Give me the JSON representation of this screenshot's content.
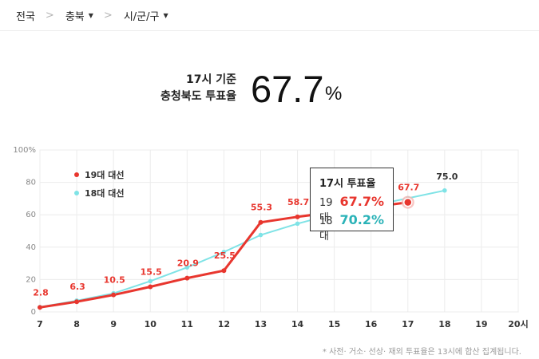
{
  "breadcrumb": {
    "items": [
      {
        "label": "전국",
        "has_caret": false
      },
      {
        "label": "충북",
        "has_caret": true
      },
      {
        "label": "시/군/구",
        "has_caret": true
      }
    ],
    "separator": ">"
  },
  "headline": {
    "line1": "17시 기준",
    "line2": "충청북도 투표율",
    "value": "67.7",
    "unit": "%"
  },
  "tooltip": {
    "title": "17시 투표율",
    "rows": [
      {
        "label": "19대",
        "value": "67.7%",
        "color": "#e8362e"
      },
      {
        "label": "18대",
        "value": "70.2%",
        "color": "#2bb3b8"
      }
    ]
  },
  "footnote": "* 사전· 거소· 선상· 재외 투표율은 13시에 합산 집계됩니다.",
  "chart_data": {
    "type": "line",
    "x": [
      7,
      8,
      9,
      10,
      11,
      12,
      13,
      14,
      15,
      16,
      17,
      18,
      19,
      20
    ],
    "x_tick_labels": [
      "7",
      "8",
      "9",
      "10",
      "11",
      "12",
      "13",
      "14",
      "15",
      "16",
      "17",
      "18",
      "19",
      "20시"
    ],
    "y_tick_labels": [
      "0",
      "20",
      "40",
      "60",
      "80",
      "100%"
    ],
    "ylim": [
      0,
      100
    ],
    "xlim": [
      7,
      20
    ],
    "grid": true,
    "legend_position": "top-left",
    "series": [
      {
        "name": "19대 대선",
        "color": "#e8362e",
        "x": [
          7,
          8,
          9,
          10,
          11,
          12,
          13,
          14,
          17
        ],
        "values": [
          2.8,
          6.3,
          10.5,
          15.5,
          20.9,
          25.5,
          55.3,
          58.7,
          67.7
        ],
        "labels": [
          "2.8",
          "6.3",
          "10.5",
          "15.5",
          "20.9",
          "25.5",
          "55.3",
          "58.7",
          "67.7"
        ]
      },
      {
        "name": "18대 대선",
        "color": "#7fe3e6",
        "x": [
          7,
          8,
          9,
          10,
          11,
          12,
          13,
          14,
          15,
          16,
          17,
          18
        ],
        "values": [
          3.0,
          7.0,
          11.5,
          19.0,
          27.5,
          37.0,
          47.5,
          54.5,
          60.5,
          65.5,
          70.2,
          75.0
        ],
        "labels": [
          "",
          "",
          "",
          "",
          "",
          "",
          "",
          "",
          "",
          "",
          "",
          "75.0"
        ]
      }
    ],
    "highlight": {
      "series": 0,
      "x": 17
    }
  }
}
